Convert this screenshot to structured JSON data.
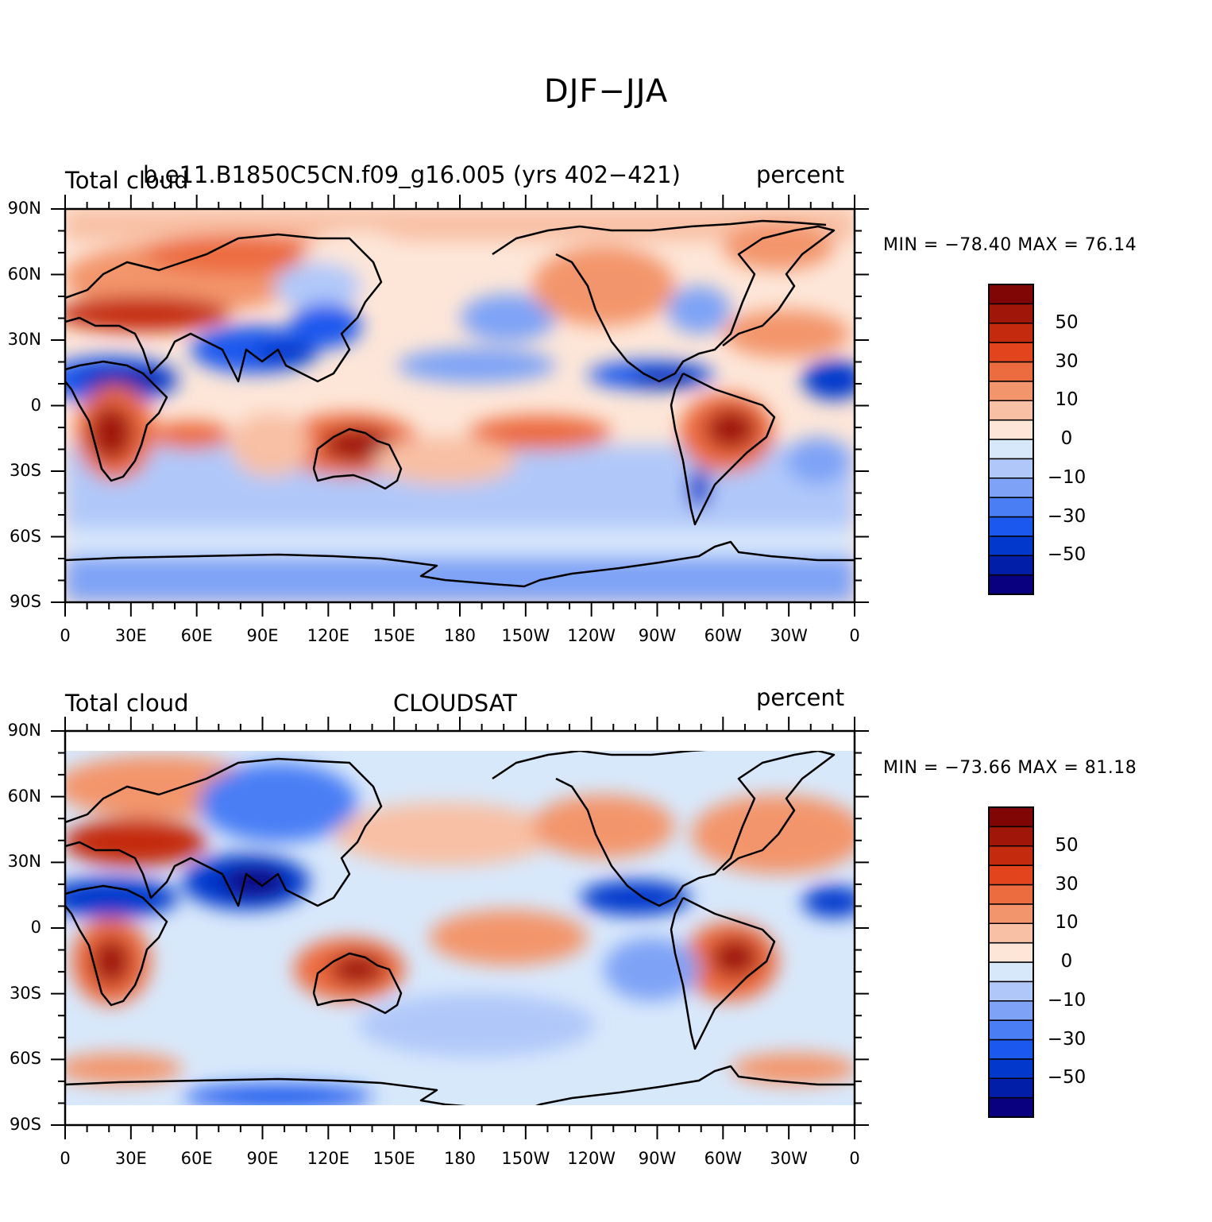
{
  "title": "DJF−JJA",
  "lat_ticks": [
    "90N",
    "60N",
    "30N",
    "0",
    "30S",
    "60S",
    "90S"
  ],
  "lon_ticks": [
    "0",
    "30E",
    "60E",
    "90E",
    "120E",
    "150E",
    "180",
    "150W",
    "120W",
    "90W",
    "60W",
    "30W",
    "0"
  ],
  "colorbar": {
    "colors": [
      "#08007e",
      "#001ea8",
      "#0338cc",
      "#1a58ee",
      "#4a7ef5",
      "#7ea3f6",
      "#b0c8f9",
      "#d8e8fb",
      "#fde6d8",
      "#f8c0a4",
      "#f3956c",
      "#ec6c3f",
      "#e2441e",
      "#c42a0e",
      "#a0170a",
      "#800505"
    ],
    "labels": [
      "50",
      "30",
      "10",
      "0",
      "−10",
      "−30",
      "−50"
    ]
  },
  "panels": [
    {
      "left_label": "Total cloud",
      "center_label": "b.e11.B1850C5CN.f09_g16.005 (yrs 402−421)",
      "right_label": "percent",
      "minmax": "MIN = −78.40  MAX =   76.14"
    },
    {
      "left_label": "Total cloud",
      "center_label": "CLOUDSAT",
      "right_label": "percent",
      "minmax": "MIN = −73.66  MAX =   81.18"
    }
  ]
}
